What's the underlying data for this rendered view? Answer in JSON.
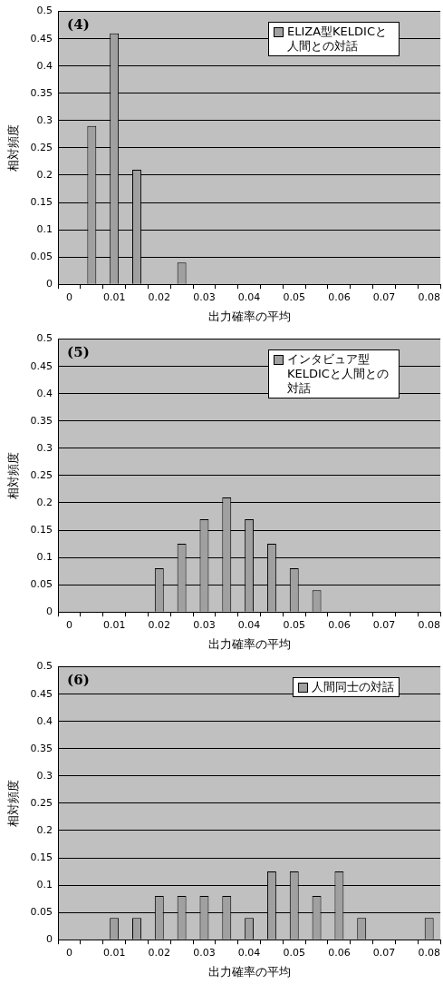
{
  "chart_data": [
    {
      "type": "bar",
      "annotations": [
        "(4)"
      ],
      "xlabel": "出力確率の平均",
      "ylabel": "相対頻度",
      "categories": [
        "0",
        null,
        "0.01",
        null,
        "0.02",
        null,
        "0.03",
        null,
        "0.04",
        null,
        "0.05",
        null,
        "0.06",
        null,
        "0.07",
        null,
        "0.08"
      ],
      "series": [
        {
          "name": "ELIZA型KELDICと人間との対話",
          "color": "#a0a0a0",
          "values": [
            0,
            0.29,
            0.46,
            0.21,
            0,
            0.04,
            0,
            0,
            0,
            0,
            0,
            0,
            0,
            0,
            0,
            0,
            0
          ]
        }
      ],
      "ylim": [
        0,
        0.5
      ],
      "yticks": [
        0,
        0.05,
        0.1,
        0.15,
        0.2,
        0.25,
        0.3,
        0.35,
        0.4,
        0.45,
        0.5
      ],
      "grid": "y",
      "legend": "top right"
    },
    {
      "type": "bar",
      "annotations": [
        "(5)"
      ],
      "xlabel": "出力確率の平均",
      "ylabel": "相対頻度",
      "categories": [
        "0",
        null,
        "0.01",
        null,
        "0.02",
        null,
        "0.03",
        null,
        "0.04",
        null,
        "0.05",
        null,
        "0.06",
        null,
        "0.07",
        null,
        "0.08"
      ],
      "series": [
        {
          "name": "インタビュア型KELDICと人間との対話",
          "color": "#a0a0a0",
          "values": [
            0,
            0,
            0,
            0,
            0.08,
            0.125,
            0.17,
            0.21,
            0.17,
            0.125,
            0.08,
            0.04,
            0,
            0,
            0,
            0,
            0
          ]
        }
      ],
      "ylim": [
        0,
        0.5
      ],
      "yticks": [
        0,
        0.05,
        0.1,
        0.15,
        0.2,
        0.25,
        0.3,
        0.35,
        0.4,
        0.45,
        0.5
      ],
      "grid": "y",
      "legend": "top right"
    },
    {
      "type": "bar",
      "annotations": [
        "(6)"
      ],
      "xlabel": "出力確率の平均",
      "ylabel": "相対頻度",
      "categories": [
        "0",
        null,
        "0.01",
        null,
        "0.02",
        null,
        "0.03",
        null,
        "0.04",
        null,
        "0.05",
        null,
        "0.06",
        null,
        "0.07",
        null,
        "0.08"
      ],
      "series": [
        {
          "name": "人間同士の対話",
          "color": "#a0a0a0",
          "values": [
            0,
            0,
            0.04,
            0.04,
            0.08,
            0.08,
            0.08,
            0.08,
            0.04,
            0.125,
            0.125,
            0.08,
            0.125,
            0.04,
            0,
            0,
            0.04
          ]
        }
      ],
      "ylim": [
        0,
        0.5
      ],
      "yticks": [
        0,
        0.05,
        0.1,
        0.15,
        0.2,
        0.25,
        0.3,
        0.35,
        0.4,
        0.45,
        0.5
      ],
      "grid": "y",
      "legend": "top right"
    }
  ]
}
